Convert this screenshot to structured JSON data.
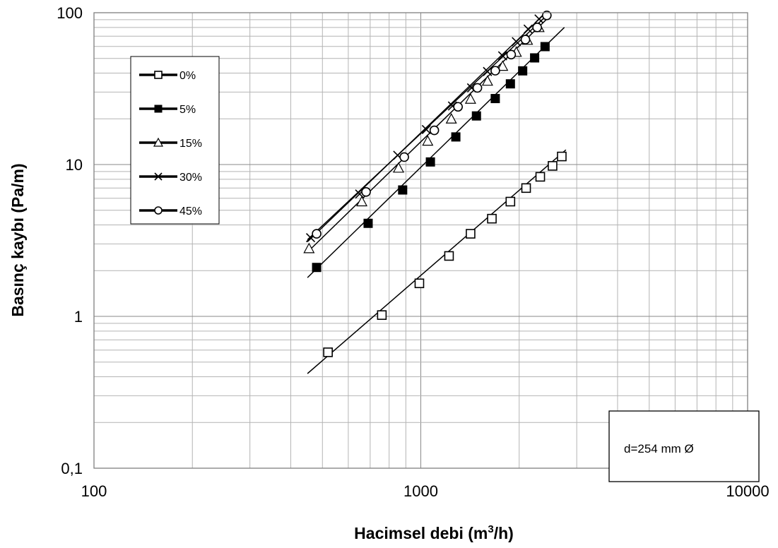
{
  "chart_data": {
    "type": "scatter",
    "xlabel": "Hacimsel debi (m",
    "xlabel_sup": "3",
    "xlabel_tail": "/h)",
    "ylabel": "Basınç kaybı (Pa/m)",
    "x_scale": "log",
    "y_scale": "log",
    "xlim": [
      100,
      10000
    ],
    "ylim": [
      0.1,
      100
    ],
    "x_ticks": [
      {
        "value": 100,
        "label": "100"
      },
      {
        "value": 1000,
        "label": "1000"
      },
      {
        "value": 10000,
        "label": "10000"
      }
    ],
    "y_ticks": [
      {
        "value": 0.1,
        "label": "0,1"
      },
      {
        "value": 1,
        "label": "1"
      },
      {
        "value": 10,
        "label": "10"
      },
      {
        "value": 100,
        "label": "100"
      }
    ],
    "grid": true,
    "legend_position": "top-left",
    "annotation": "d=254 mm Ø",
    "series": [
      {
        "name": "0%",
        "marker": "square-open",
        "x": [
          520,
          760,
          990,
          1220,
          1420,
          1650,
          1880,
          2100,
          2320,
          2530,
          2700
        ],
        "y": [
          0.58,
          1.02,
          1.65,
          2.5,
          3.5,
          4.4,
          5.7,
          7.0,
          8.3,
          9.8,
          11.3
        ],
        "fit": {
          "x": [
            450,
            2780
          ],
          "y": [
            0.42,
            12.5
          ]
        }
      },
      {
        "name": "5%",
        "marker": "square-filled",
        "x": [
          480,
          690,
          880,
          1070,
          1280,
          1480,
          1690,
          1880,
          2050,
          2230,
          2400
        ],
        "y": [
          2.1,
          4.1,
          6.8,
          10.4,
          15.2,
          20.9,
          27.2,
          34.0,
          41.4,
          50.4,
          59.8
        ],
        "fit": {
          "x": [
            450,
            2750
          ],
          "y": [
            1.8,
            80
          ]
        }
      },
      {
        "name": "15%",
        "marker": "triangle-open",
        "x": [
          455,
          660,
          855,
          1050,
          1240,
          1420,
          1600,
          1780,
          1960,
          2120,
          2300
        ],
        "y": [
          2.8,
          5.7,
          9.5,
          14.3,
          20.0,
          27.0,
          35.5,
          44.5,
          55.0,
          66.0,
          80.0
        ],
        "fit": {
          "x": [
            450,
            2420
          ],
          "y": [
            2.65,
            90
          ]
        }
      },
      {
        "name": "30%",
        "marker": "x",
        "x": [
          460,
          650,
          850,
          1040,
          1250,
          1430,
          1600,
          1780,
          1960,
          2130,
          2300
        ],
        "y": [
          3.3,
          6.4,
          11.5,
          17.0,
          24.3,
          32.0,
          41.0,
          52.0,
          64.5,
          78.0,
          91.0
        ],
        "fit": {
          "x": [
            450,
            2390
          ],
          "y": [
            3.1,
            98
          ]
        }
      },
      {
        "name": "45%",
        "marker": "circle-open",
        "x": [
          480,
          680,
          890,
          1100,
          1300,
          1490,
          1690,
          1890,
          2090,
          2270,
          2430
        ],
        "y": [
          3.5,
          6.6,
          11.2,
          16.8,
          24.0,
          32.0,
          41.5,
          53.0,
          66.5,
          80.0,
          96.0
        ],
        "fit": {
          "x": [
            450,
            2430
          ],
          "y": [
            3.2,
            96
          ]
        }
      }
    ]
  }
}
